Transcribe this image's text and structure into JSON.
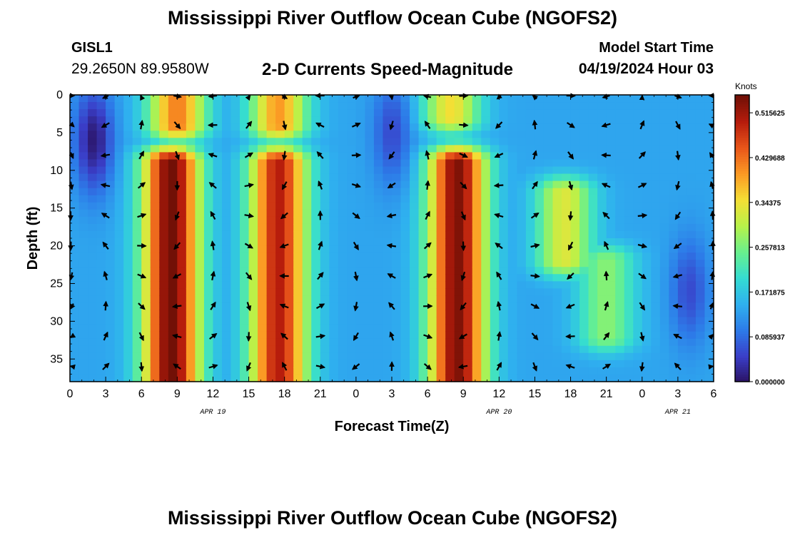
{
  "page": {
    "title": "Mississippi River Outflow Ocean Cube (NGOFS2)",
    "footer_title": "Mississippi River Outflow Ocean Cube (NGOFS2)",
    "station_id": "GISL1",
    "station_coords": "29.2650N  89.9580W",
    "plot_title": "2-D Currents Speed-Magnitude",
    "model_label": "Model Start Time",
    "model_time": "04/19/2024 Hour 03"
  },
  "chart_data": {
    "type": "heatmap",
    "title": "2-D Currents Speed-Magnitude",
    "xlabel": "Forecast Time(Z)",
    "ylabel": "Depth (ft)",
    "x_range_hours": [
      0,
      54
    ],
    "y_range": [
      0,
      38
    ],
    "y_inverted": true,
    "x_tick_labels": [
      "0",
      "3",
      "6",
      "9",
      "12",
      "15",
      "18",
      "21",
      "0",
      "3",
      "6",
      "9",
      "12",
      "15",
      "18",
      "21",
      "0",
      "3",
      "6"
    ],
    "y_ticks": [
      0,
      5,
      10,
      15,
      20,
      25,
      30,
      35
    ],
    "date_labels": [
      {
        "label": "APR 19",
        "hour": 12
      },
      {
        "label": "APR 20",
        "hour": 36
      },
      {
        "label": "APR 21",
        "hour": 51
      }
    ],
    "colorbar": {
      "unit": "Knots",
      "ticks": [
        "0.515625",
        "0.429688",
        "0.34375",
        "0.257813",
        "0.171875",
        "0.0859375",
        "0.000000"
      ],
      "range": [
        0,
        0.55
      ],
      "colormap": [
        "#2a1160",
        "#3a3ec8",
        "#2d7ae8",
        "#2fb0ef",
        "#34dcd2",
        "#68f08e",
        "#b7f24a",
        "#f4df35",
        "#fb9a24",
        "#e9561a",
        "#b61c0c",
        "#701006"
      ]
    },
    "speed_peaks": [
      {
        "hour": 8.5,
        "depth_top": 9,
        "depth_bottom": 38,
        "speed": 0.55
      },
      {
        "hour": 17.5,
        "depth_top": 9,
        "depth_bottom": 38,
        "speed": 0.5
      },
      {
        "hour": 9,
        "depth_top": 0,
        "depth_bottom": 4,
        "speed": 0.42
      },
      {
        "hour": 17.5,
        "depth_top": 0,
        "depth_bottom": 4,
        "speed": 0.4
      },
      {
        "hour": 32.5,
        "depth_top": 9,
        "depth_bottom": 38,
        "speed": 0.54
      },
      {
        "hour": 32,
        "depth_top": 0,
        "depth_bottom": 3,
        "speed": 0.35
      },
      {
        "hour": 41.5,
        "depth_top": 13,
        "depth_bottom": 22,
        "speed": 0.33
      },
      {
        "hour": 45,
        "depth_top": 22,
        "depth_bottom": 32,
        "speed": 0.27
      }
    ],
    "vector_depths": [
      0,
      4,
      8,
      12,
      16,
      20,
      24,
      28,
      32,
      36
    ],
    "vector_hours": [
      0,
      3,
      6,
      9,
      12,
      15,
      18,
      21,
      24,
      27,
      30,
      33,
      36,
      39,
      42,
      45,
      48,
      51,
      54
    ]
  }
}
